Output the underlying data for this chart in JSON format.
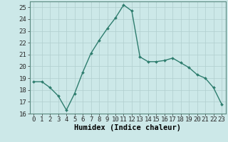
{
  "x": [
    0,
    1,
    2,
    3,
    4,
    5,
    6,
    7,
    8,
    9,
    10,
    11,
    12,
    13,
    14,
    15,
    16,
    17,
    18,
    19,
    20,
    21,
    22,
    23
  ],
  "y": [
    18.7,
    18.7,
    18.2,
    17.5,
    16.3,
    17.7,
    19.5,
    21.1,
    22.2,
    23.2,
    24.1,
    25.2,
    24.7,
    20.8,
    20.4,
    20.4,
    20.5,
    20.7,
    20.3,
    19.9,
    19.3,
    19.0,
    18.2,
    16.8
  ],
  "line_color": "#2e7d6e",
  "marker": "D",
  "marker_size": 2.0,
  "bg_color": "#cce8e8",
  "grid_color": "#b0cece",
  "xlabel": "Humidex (Indice chaleur)",
  "ylim": [
    16,
    25.5
  ],
  "xlim": [
    -0.5,
    23.5
  ],
  "yticks": [
    16,
    17,
    18,
    19,
    20,
    21,
    22,
    23,
    24,
    25
  ],
  "xticks": [
    0,
    1,
    2,
    3,
    4,
    5,
    6,
    7,
    8,
    9,
    10,
    11,
    12,
    13,
    14,
    15,
    16,
    17,
    18,
    19,
    20,
    21,
    22,
    23
  ],
  "xlabel_fontsize": 7.5,
  "tick_fontsize": 6.5,
  "line_width": 1.0
}
